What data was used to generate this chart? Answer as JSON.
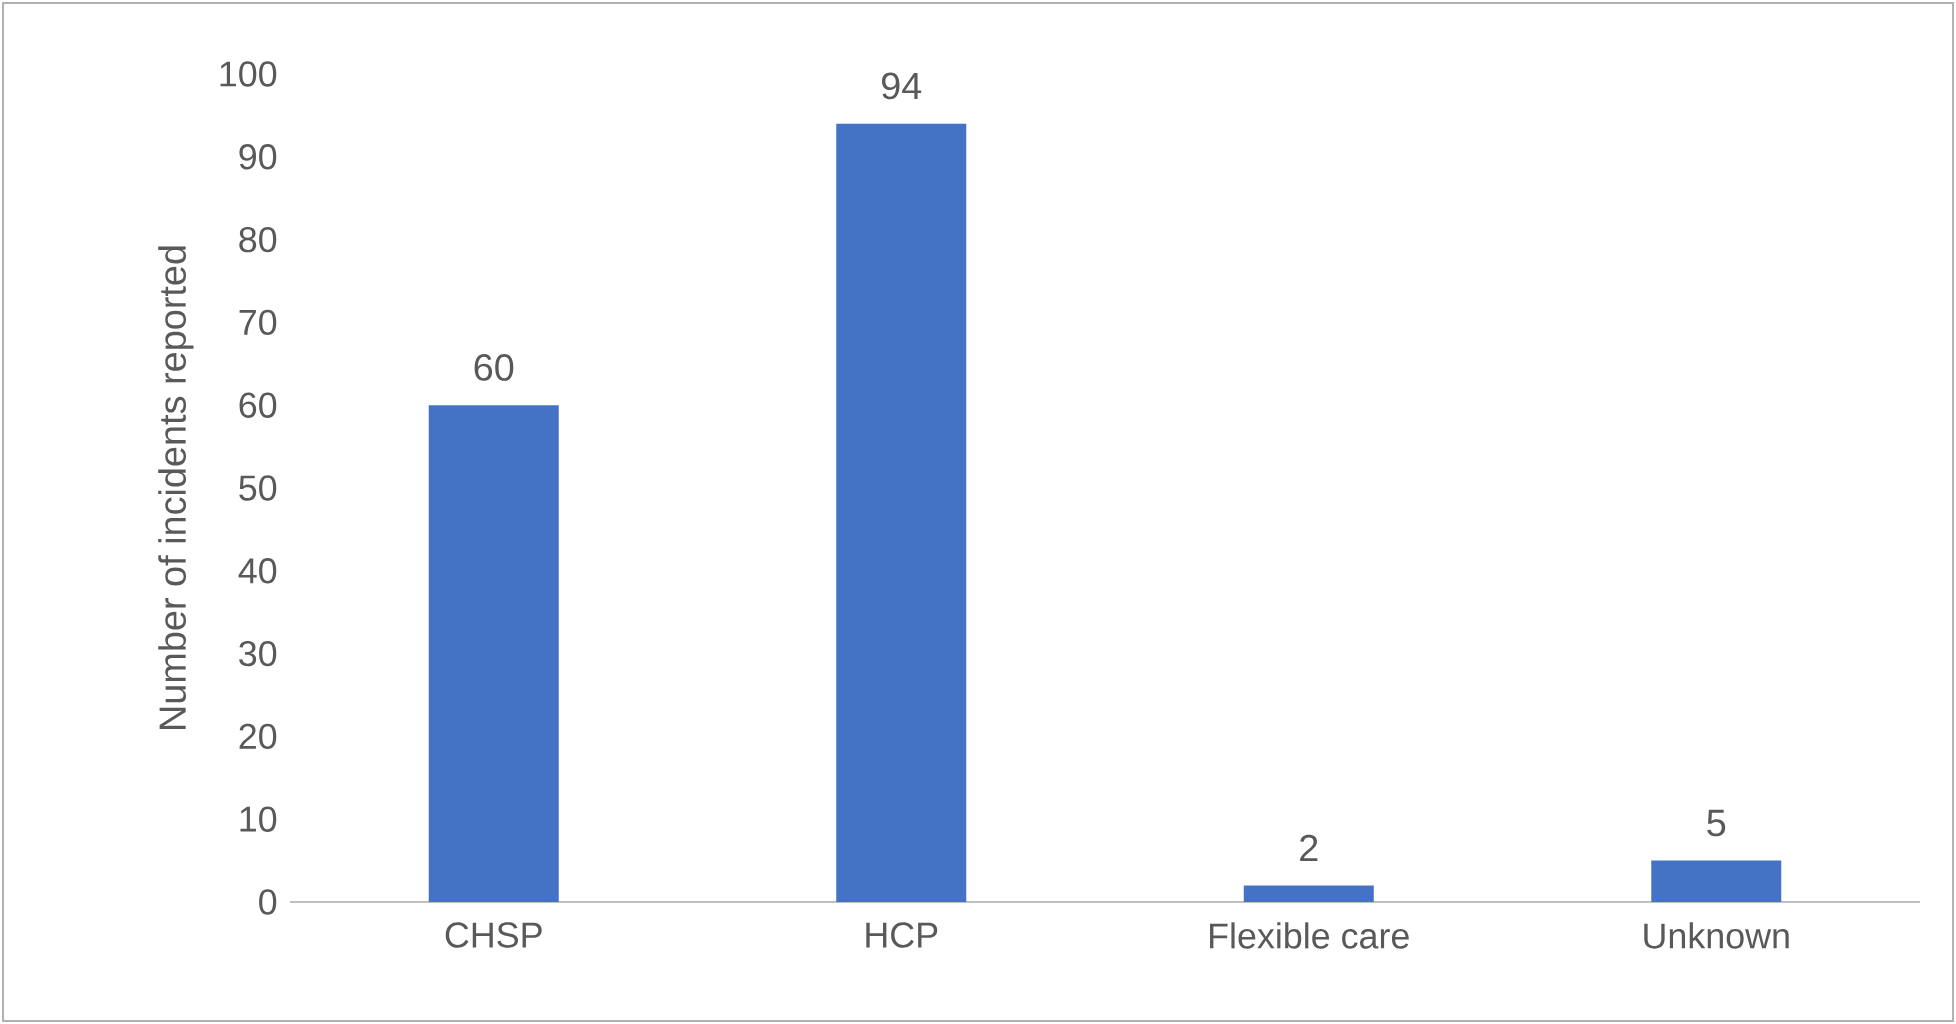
{
  "chart_data": {
    "type": "bar",
    "ylabel": "Number of incidents reported",
    "categories": [
      "CHSP",
      "HCP",
      "Flexible care",
      "Unknown"
    ],
    "values": [
      60,
      94,
      2,
      5
    ],
    "color": "#4472c4",
    "ylim": [
      0,
      100
    ],
    "yticks": [
      0,
      10,
      20,
      30,
      40,
      50,
      60,
      70,
      80,
      90,
      100
    ],
    "data_labels": true
  }
}
